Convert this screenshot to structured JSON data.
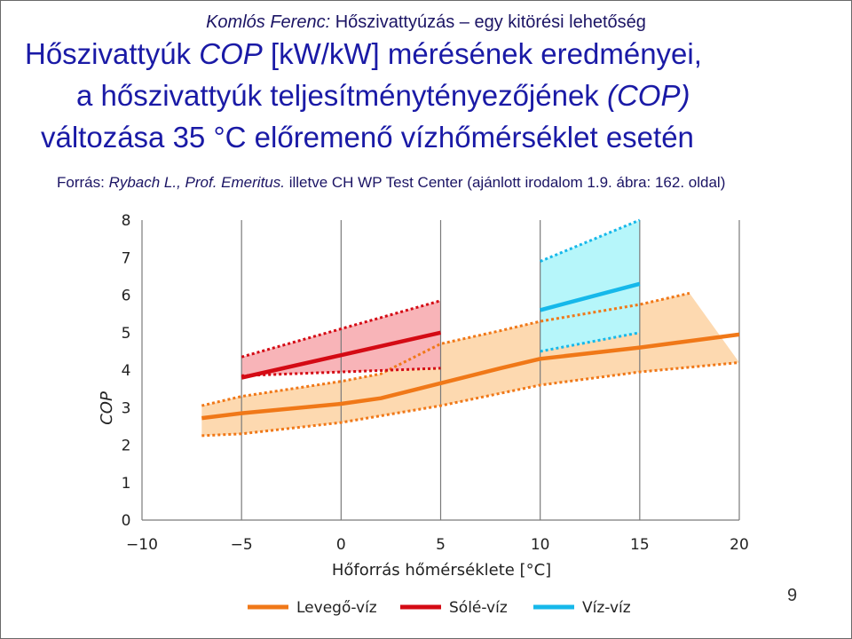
{
  "header": {
    "author": "Komlós Ferenc:",
    "topic": "Hőszivattyúzás – egy kitörési lehetőség"
  },
  "title": {
    "line1_part1": "Hőszivattyúk ",
    "line1_cop": "COP",
    "line1_part2": " [kW/kW] mérésének eredményei,",
    "line2_part1": "a hőszivattyúk teljesítménytényezőjének ",
    "line2_cop": "(COP)",
    "line3": "változása 35 °C előremenő vízhőmérséklet esetén"
  },
  "source": {
    "prefix": "Forrás: ",
    "author": "Rybach L., Prof. Emeritus.",
    "rest": "  illetve CH WP Test Center (ajánlott irodalom 1.9. ábra: 162. oldal)"
  },
  "page_number": "9",
  "chart_data": {
    "type": "line",
    "xlabel": "Hőforrás hőmérséklete [°C]",
    "ylabel": "COP",
    "xlim": [
      -10,
      20
    ],
    "ylim": [
      0,
      8
    ],
    "x_ticks": [
      -10,
      -5,
      0,
      5,
      10,
      15,
      20
    ],
    "x_tick_labels": [
      "−10",
      "−5",
      "0",
      "5",
      "10",
      "15",
      "20"
    ],
    "y_ticks": [
      0,
      1,
      2,
      3,
      4,
      5,
      6,
      7,
      8
    ],
    "y_tick_labels": [
      "0",
      "1",
      "2",
      "3",
      "4",
      "5",
      "6",
      "7",
      "8"
    ],
    "grid": "vertical",
    "legend_position": "bottom",
    "series": [
      {
        "name": "Levegő-víz",
        "color": "#f07818",
        "band_color": "#fdd9b0",
        "band_edge_color": "#f07818",
        "mean": [
          [
            -7,
            2.72
          ],
          [
            -5,
            2.85
          ],
          [
            0,
            3.1
          ],
          [
            2,
            3.25
          ],
          [
            5,
            3.65
          ],
          [
            8,
            4.05
          ],
          [
            10,
            4.3
          ],
          [
            15,
            4.6
          ],
          [
            20,
            4.95
          ]
        ],
        "upper": [
          [
            -7,
            3.05
          ],
          [
            -5,
            3.3
          ],
          [
            0,
            3.7
          ],
          [
            2,
            3.9
          ],
          [
            5,
            4.7
          ],
          [
            8,
            5.05
          ],
          [
            10,
            5.3
          ],
          [
            15,
            5.75
          ],
          [
            17.5,
            6.05
          ]
        ],
        "lower": [
          [
            -7,
            2.25
          ],
          [
            -5,
            2.3
          ],
          [
            0,
            2.6
          ],
          [
            5,
            3.05
          ],
          [
            10,
            3.6
          ],
          [
            15,
            3.95
          ],
          [
            20,
            4.2
          ]
        ],
        "band": [
          [
            -7,
            2.25
          ],
          [
            -7,
            3.05
          ],
          [
            -5,
            3.3
          ],
          [
            0,
            3.7
          ],
          [
            2,
            3.9
          ],
          [
            5,
            4.7
          ],
          [
            8,
            5.05
          ],
          [
            10,
            5.3
          ],
          [
            15,
            5.75
          ],
          [
            17.5,
            6.05
          ],
          [
            20,
            4.2
          ],
          [
            15,
            3.95
          ],
          [
            10,
            3.6
          ],
          [
            5,
            3.05
          ],
          [
            0,
            2.6
          ],
          [
            -5,
            2.3
          ]
        ]
      },
      {
        "name": "Sólé-víz",
        "color": "#d40a14",
        "band_color": "#f8b4b8",
        "band_edge_color": "#d40a14",
        "mean": [
          [
            -5,
            3.8
          ],
          [
            5,
            5.0
          ]
        ],
        "upper": [
          [
            -5,
            4.35
          ],
          [
            5,
            5.85
          ]
        ],
        "lower": [
          [
            -5,
            3.85
          ],
          [
            5,
            4.05
          ]
        ]
      },
      {
        "name": "Víz-víz",
        "color": "#16b8ea",
        "band_color": "#b6f6fa",
        "band_edge_color": "#16b8ea",
        "mean": [
          [
            10,
            5.6
          ],
          [
            15,
            6.3
          ]
        ],
        "upper": [
          [
            10,
            6.9
          ],
          [
            15,
            8.0
          ]
        ],
        "lower": [
          [
            10,
            4.5
          ],
          [
            15,
            5.0
          ]
        ]
      }
    ]
  }
}
